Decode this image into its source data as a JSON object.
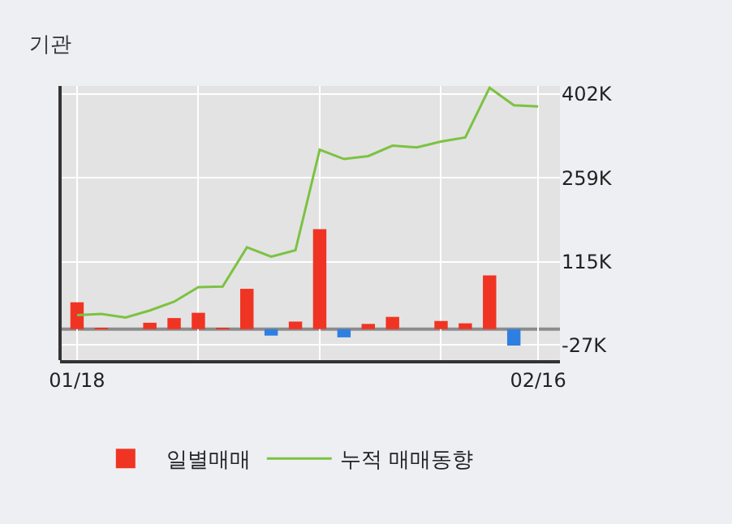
{
  "chart_data": {
    "type": "bar",
    "title": "기관",
    "categories": [
      "01/18",
      null,
      null,
      null,
      null,
      null,
      null,
      null,
      null,
      null,
      null,
      null,
      null,
      null,
      null,
      null,
      null,
      null,
      null,
      "02/16"
    ],
    "series": [
      {
        "name": "일별매매",
        "values": [
          46,
          2,
          0,
          11,
          19,
          28,
          2,
          69,
          -11,
          13,
          171,
          -14,
          9,
          21,
          0,
          14,
          10,
          92,
          -28,
          null
        ],
        "colors": [
          "#f03423",
          "#f03423",
          "#f03423",
          "#f03423",
          "#f03423",
          "#f03423",
          "#f03423",
          "#f03423",
          "#2f7fe0",
          "#f03423",
          "#f03423",
          "#2f7fe0",
          "#f03423",
          "#f03423",
          "#f03423",
          "#f03423",
          "#f03423",
          "#f03423",
          "#2f7fe0",
          "#f03423"
        ]
      },
      {
        "name": "누적 매매동향",
        "type": "line",
        "color": "#7cc242",
        "values": [
          24,
          26,
          20,
          32,
          47,
          72,
          73,
          140,
          124,
          135,
          307,
          291,
          296,
          314,
          311,
          321,
          328,
          413,
          383,
          381
        ]
      }
    ],
    "ylim": [
      -53,
      416
    ],
    "yticks": [
      {
        "value": 402,
        "label": "402K"
      },
      {
        "value": 259,
        "label": "259K"
      },
      {
        "value": 115,
        "label": "115K"
      },
      {
        "value": -27,
        "label": "-27K"
      }
    ],
    "ref_lines": [
      {
        "axis": "y",
        "value": 0,
        "color": "#8c8c8c"
      }
    ],
    "grid": true,
    "legend": "bottom",
    "marker": "none",
    "line_style": "solid"
  }
}
